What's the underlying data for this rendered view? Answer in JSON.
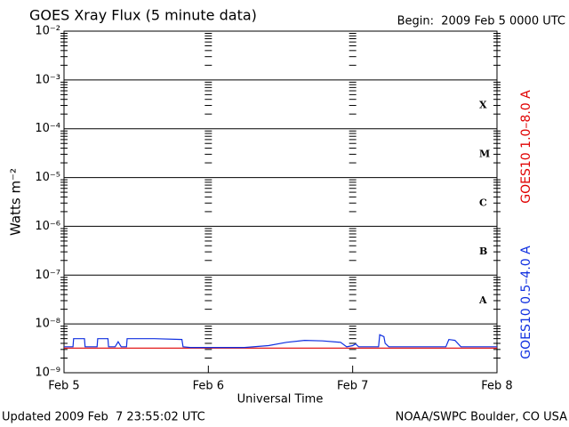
{
  "chart_data": {
    "type": "line",
    "title": "GOES Xray Flux (5 minute data)",
    "subtitle": "Begin:  2009 Feb 5 0000 UTC",
    "y_label": "Watts m⁻²",
    "x_label": "Universal Time",
    "footer_left": "Updated 2009 Feb  7 23:55:02 UTC",
    "footer_right": "NOAA/SWPC Boulder, CO USA",
    "log_y": true,
    "grid": true,
    "ylim": [
      1e-09,
      0.01
    ],
    "yticks": [
      {
        "value": 1e-09,
        "label": "10⁻⁹"
      },
      {
        "value": 1e-08,
        "label": "10⁻⁸"
      },
      {
        "value": 1e-07,
        "label": "10⁻⁷"
      },
      {
        "value": 1e-06,
        "label": "10⁻⁶"
      },
      {
        "value": 1e-05,
        "label": "10⁻⁵"
      },
      {
        "value": 0.0001,
        "label": "10⁻⁴"
      },
      {
        "value": 0.001,
        "label": "10⁻³"
      },
      {
        "value": 0.01,
        "label": "10⁻²"
      }
    ],
    "xlim": [
      0,
      72
    ],
    "xticks": [
      {
        "value": 0,
        "label": "Feb 5"
      },
      {
        "value": 24,
        "label": "Feb 6"
      },
      {
        "value": 48,
        "label": "Feb 7"
      },
      {
        "value": 72,
        "label": "Feb 8"
      }
    ],
    "annotations": [
      {
        "text": "X",
        "value": 0.0003
      },
      {
        "text": "M",
        "value": 3e-05
      },
      {
        "text": "C",
        "value": 3e-06
      },
      {
        "text": "B",
        "value": 3e-07
      },
      {
        "text": "A",
        "value": 3e-08
      }
    ],
    "x": [
      0,
      1.5,
      1.6,
      3.4,
      3.5,
      5.5,
      5.6,
      7.3,
      7.4,
      8.5,
      9,
      9.5,
      10.4,
      10.5,
      15,
      19.6,
      19.8,
      21,
      30,
      34,
      37,
      40,
      43,
      46,
      47,
      48,
      48.5,
      49,
      52.3,
      52.5,
      53.2,
      53.4,
      54,
      63.5,
      64,
      65,
      66,
      72
    ],
    "series": [
      {
        "name": "GOES10 1.0–8.0 A",
        "color": "#e00000",
        "values": [
          3.2e-09,
          3.2e-09,
          3.2e-09,
          3.2e-09,
          3.2e-09,
          3.2e-09,
          3.2e-09,
          3.2e-09,
          3.2e-09,
          3.2e-09,
          3.2e-09,
          3.2e-09,
          3.2e-09,
          3.2e-09,
          3.2e-09,
          3.2e-09,
          3.2e-09,
          3.2e-09,
          3.2e-09,
          3.2e-09,
          3.2e-09,
          3.2e-09,
          3.2e-09,
          3.2e-09,
          3.2e-09,
          3.2e-09,
          3.2e-09,
          3.2e-09,
          3.2e-09,
          3.2e-09,
          3.2e-09,
          3.2e-09,
          3.2e-09,
          3.2e-09,
          3.2e-09,
          3.2e-09,
          3.2e-09,
          3.2e-09
        ]
      },
      {
        "name": "GOES10 0.5–4.0 A",
        "color": "#1030e0",
        "values": [
          3.4e-09,
          3.4e-09,
          5e-09,
          5e-09,
          3.4e-09,
          3.4e-09,
          5e-09,
          5e-09,
          3.4e-09,
          3.4e-09,
          4.3e-09,
          3.4e-09,
          3.4e-09,
          5e-09,
          5e-09,
          4.8e-09,
          3.4e-09,
          3.3e-09,
          3.3e-09,
          3.6e-09,
          4.2e-09,
          4.6e-09,
          4.5e-09,
          4.2e-09,
          3.4e-09,
          3.6e-09,
          3.9e-09,
          3.4e-09,
          3.4e-09,
          6e-09,
          5.5e-09,
          4e-09,
          3.4e-09,
          3.4e-09,
          4.8e-09,
          4.6e-09,
          3.4e-09,
          3.4e-09
        ]
      }
    ]
  }
}
